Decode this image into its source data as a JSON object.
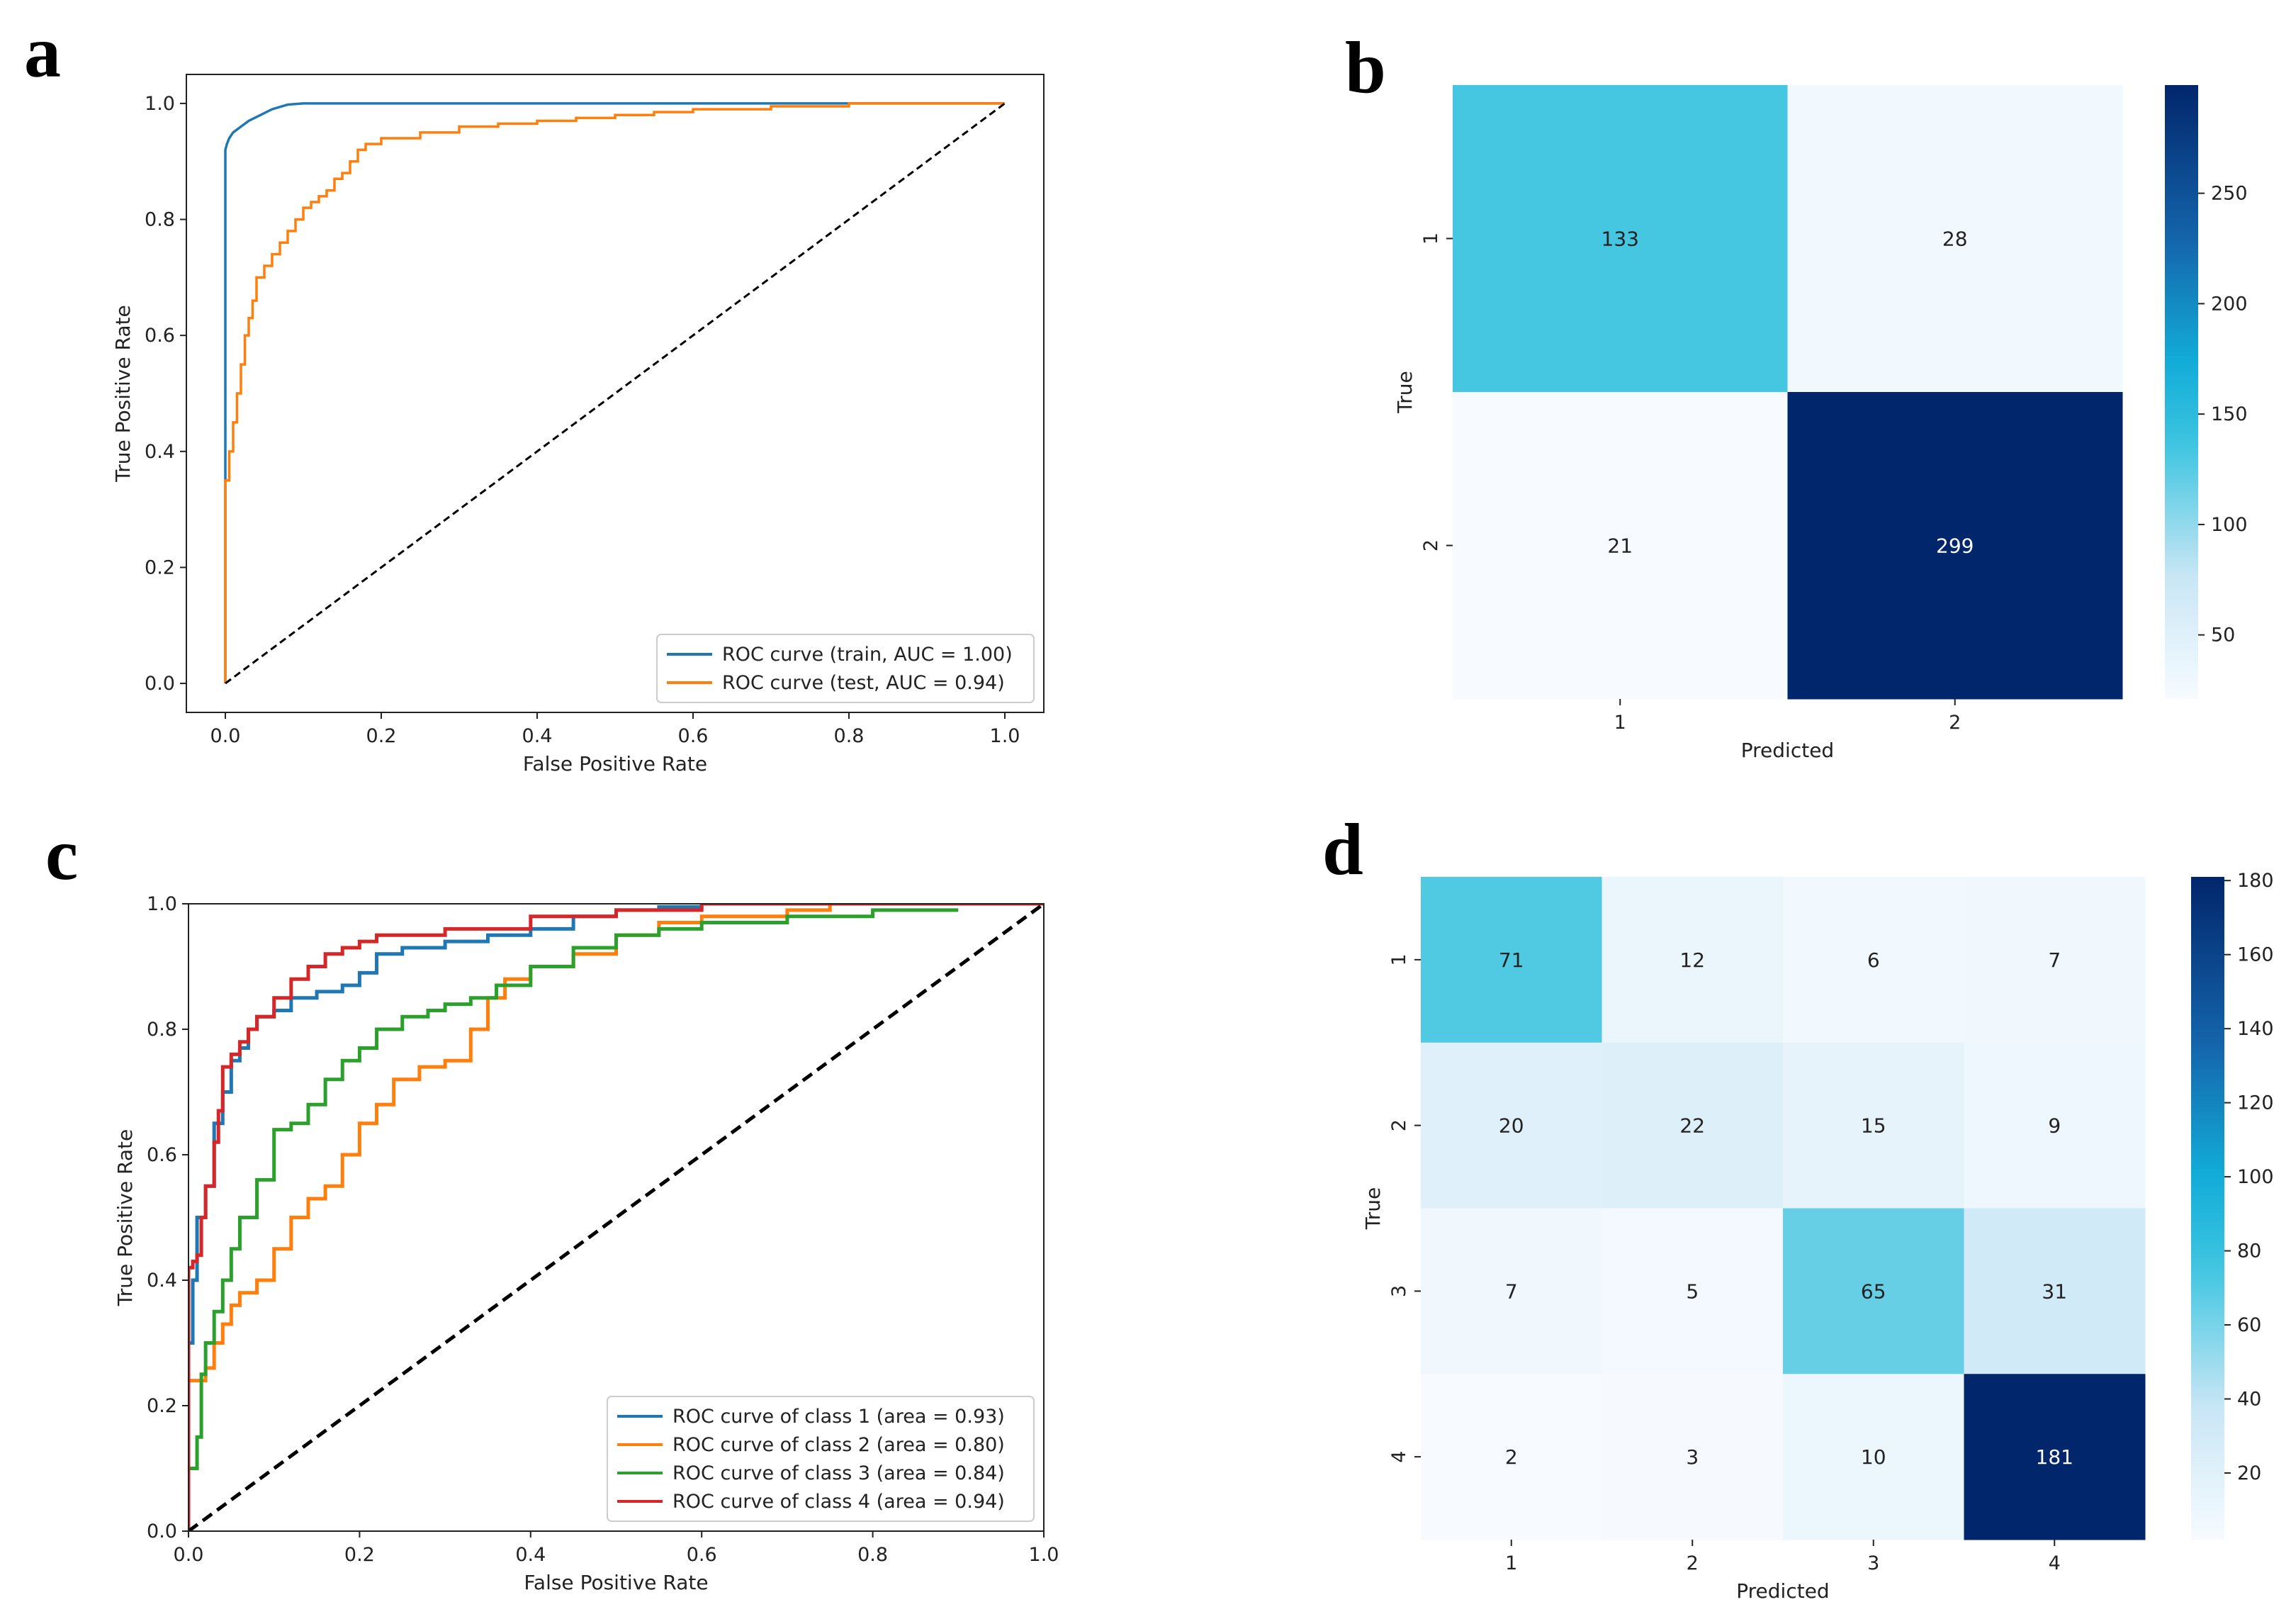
{
  "panels": {
    "a": "a",
    "b": "b",
    "c": "c",
    "d": "d"
  },
  "chart_data": [
    {
      "id": "a",
      "type": "line",
      "xlabel": "False Positive Rate",
      "ylabel": "True Positive Rate",
      "xlim": [
        -0.05,
        1.05
      ],
      "ylim": [
        -0.05,
        1.05
      ],
      "xticks": [
        0.0,
        0.2,
        0.4,
        0.6,
        0.8,
        1.0
      ],
      "xtick_labels": [
        "0.0",
        "0.2",
        "0.4",
        "0.6",
        "0.8",
        "1.0"
      ],
      "yticks": [
        0.0,
        0.2,
        0.4,
        0.6,
        0.8,
        1.0
      ],
      "ytick_labels": [
        "0.0",
        "0.2",
        "0.4",
        "0.6",
        "0.8",
        "1.0"
      ],
      "legend_position": "lower-right",
      "series": [
        {
          "name": "ROC curve (train, AUC = 1.00)",
          "color": "#1f77b4",
          "step": false,
          "x": [
            0,
            0,
            0.002,
            0.005,
            0.01,
            0.02,
            0.03,
            0.045,
            0.06,
            0.08,
            0.1,
            0.2,
            0.5,
            1.0
          ],
          "y": [
            0,
            0.92,
            0.93,
            0.94,
            0.95,
            0.96,
            0.97,
            0.98,
            0.99,
            0.998,
            1.0,
            1.0,
            1.0,
            1.0
          ]
        },
        {
          "name": "ROC curve (test, AUC = 0.94)",
          "color": "#ff7f0e",
          "step": true,
          "x": [
            0,
            0.005,
            0.01,
            0.015,
            0.02,
            0.025,
            0.03,
            0.035,
            0.04,
            0.05,
            0.06,
            0.07,
            0.08,
            0.09,
            0.1,
            0.11,
            0.12,
            0.13,
            0.14,
            0.15,
            0.16,
            0.17,
            0.18,
            0.2,
            0.25,
            0.3,
            0.35,
            0.4,
            0.45,
            0.5,
            0.55,
            0.6,
            0.65,
            0.7,
            0.75,
            0.8,
            0.9,
            1.0
          ],
          "y": [
            0,
            0.35,
            0.4,
            0.45,
            0.5,
            0.55,
            0.6,
            0.63,
            0.66,
            0.7,
            0.72,
            0.74,
            0.76,
            0.78,
            0.8,
            0.82,
            0.83,
            0.84,
            0.85,
            0.87,
            0.88,
            0.9,
            0.92,
            0.93,
            0.94,
            0.95,
            0.96,
            0.965,
            0.97,
            0.975,
            0.98,
            0.985,
            0.99,
            0.99,
            0.995,
            0.995,
            1.0,
            1.0
          ]
        },
        {
          "name": "",
          "color": "#000000",
          "dashed": true,
          "x": [
            0,
            1
          ],
          "y": [
            0,
            1
          ]
        }
      ]
    },
    {
      "id": "b",
      "type": "heatmap",
      "xlabel": "Predicted",
      "ylabel": "True",
      "x_categories": [
        "1",
        "2"
      ],
      "y_categories": [
        "1",
        "2"
      ],
      "values": [
        [
          133,
          28
        ],
        [
          21,
          299
        ]
      ],
      "colormap": "Blues-cyan",
      "vmin": 21,
      "vmax": 299,
      "colorbar_ticks": [
        50,
        100,
        150,
        200,
        250
      ]
    },
    {
      "id": "c",
      "type": "line",
      "xlabel": "False Positive Rate",
      "ylabel": "True Positive Rate",
      "xlim": [
        0,
        1
      ],
      "ylim": [
        0,
        1
      ],
      "xticks": [
        0.0,
        0.2,
        0.4,
        0.6,
        0.8,
        1.0
      ],
      "xtick_labels": [
        "0.0",
        "0.2",
        "0.4",
        "0.6",
        "0.8",
        "1.0"
      ],
      "yticks": [
        0.0,
        0.2,
        0.4,
        0.6,
        0.8,
        1.0
      ],
      "ytick_labels": [
        "0.0",
        "0.2",
        "0.4",
        "0.6",
        "0.8",
        "1.0"
      ],
      "legend_position": "lower-right",
      "series": [
        {
          "name": "ROC curve of class 1 (area = 0.93)",
          "color": "#1f77b4",
          "step": true,
          "x": [
            0,
            0.005,
            0.01,
            0.02,
            0.03,
            0.04,
            0.05,
            0.06,
            0.07,
            0.08,
            0.1,
            0.12,
            0.15,
            0.18,
            0.2,
            0.22,
            0.25,
            0.3,
            0.35,
            0.4,
            0.45,
            0.5,
            0.55,
            0.6,
            0.65,
            1.0
          ],
          "y": [
            0,
            0.3,
            0.4,
            0.5,
            0.55,
            0.65,
            0.7,
            0.75,
            0.77,
            0.8,
            0.82,
            0.83,
            0.85,
            0.86,
            0.87,
            0.89,
            0.92,
            0.93,
            0.94,
            0.95,
            0.96,
            0.98,
            0.99,
            0.995,
            1.0,
            1.0
          ]
        },
        {
          "name": "ROC curve of class 2 (area = 0.80)",
          "color": "#ff7f0e",
          "step": true,
          "x": [
            0,
            0.02,
            0.03,
            0.04,
            0.05,
            0.06,
            0.08,
            0.1,
            0.12,
            0.14,
            0.16,
            0.18,
            0.2,
            0.22,
            0.24,
            0.27,
            0.3,
            0.33,
            0.35,
            0.37,
            0.4,
            0.45,
            0.5,
            0.55,
            0.6,
            0.7,
            0.75,
            0.8,
            1.0
          ],
          "y": [
            0,
            0.24,
            0.26,
            0.3,
            0.33,
            0.36,
            0.38,
            0.4,
            0.45,
            0.5,
            0.53,
            0.55,
            0.6,
            0.65,
            0.68,
            0.72,
            0.74,
            0.75,
            0.8,
            0.85,
            0.88,
            0.9,
            0.92,
            0.95,
            0.97,
            0.98,
            0.99,
            1.0,
            1.0
          ]
        },
        {
          "name": "ROC curve of class 3 (area = 0.84)",
          "color": "#2ca02c",
          "step": true,
          "x": [
            0,
            0.01,
            0.015,
            0.02,
            0.03,
            0.04,
            0.05,
            0.06,
            0.08,
            0.1,
            0.12,
            0.14,
            0.16,
            0.18,
            0.2,
            0.22,
            0.25,
            0.28,
            0.3,
            0.33,
            0.36,
            0.4,
            0.45,
            0.5,
            0.55,
            0.6,
            0.7,
            0.8,
            0.9
          ],
          "y": [
            0,
            0.1,
            0.15,
            0.25,
            0.3,
            0.35,
            0.4,
            0.45,
            0.5,
            0.56,
            0.64,
            0.65,
            0.68,
            0.72,
            0.75,
            0.77,
            0.8,
            0.82,
            0.83,
            0.84,
            0.85,
            0.87,
            0.9,
            0.93,
            0.95,
            0.96,
            0.97,
            0.98,
            0.99
          ]
        },
        {
          "name": "ROC curve of class 4 (area = 0.94)",
          "color": "#d62728",
          "step": true,
          "x": [
            0,
            0.005,
            0.01,
            0.015,
            0.02,
            0.03,
            0.035,
            0.04,
            0.05,
            0.06,
            0.07,
            0.08,
            0.1,
            0.12,
            0.14,
            0.16,
            0.18,
            0.2,
            0.22,
            0.25,
            0.3,
            0.4,
            0.5,
            0.6,
            1.0
          ],
          "y": [
            0,
            0.42,
            0.43,
            0.44,
            0.5,
            0.55,
            0.62,
            0.67,
            0.74,
            0.76,
            0.78,
            0.8,
            0.82,
            0.85,
            0.88,
            0.9,
            0.92,
            0.93,
            0.94,
            0.95,
            0.95,
            0.96,
            0.98,
            0.99,
            1.0
          ]
        },
        {
          "name": "",
          "color": "#000000",
          "dashed": true,
          "x": [
            0,
            1
          ],
          "y": [
            0,
            1
          ]
        }
      ]
    },
    {
      "id": "d",
      "type": "heatmap",
      "xlabel": "Predicted",
      "ylabel": "True",
      "x_categories": [
        "1",
        "2",
        "3",
        "4"
      ],
      "y_categories": [
        "1",
        "2",
        "3",
        "4"
      ],
      "values": [
        [
          71,
          12,
          6,
          7
        ],
        [
          20,
          22,
          15,
          9
        ],
        [
          7,
          5,
          65,
          31
        ],
        [
          2,
          3,
          10,
          181
        ]
      ],
      "colormap": "Blues-cyan",
      "vmin": 2,
      "vmax": 181,
      "colorbar_ticks": [
        20,
        40,
        60,
        80,
        100,
        120,
        140,
        160,
        180
      ]
    }
  ]
}
